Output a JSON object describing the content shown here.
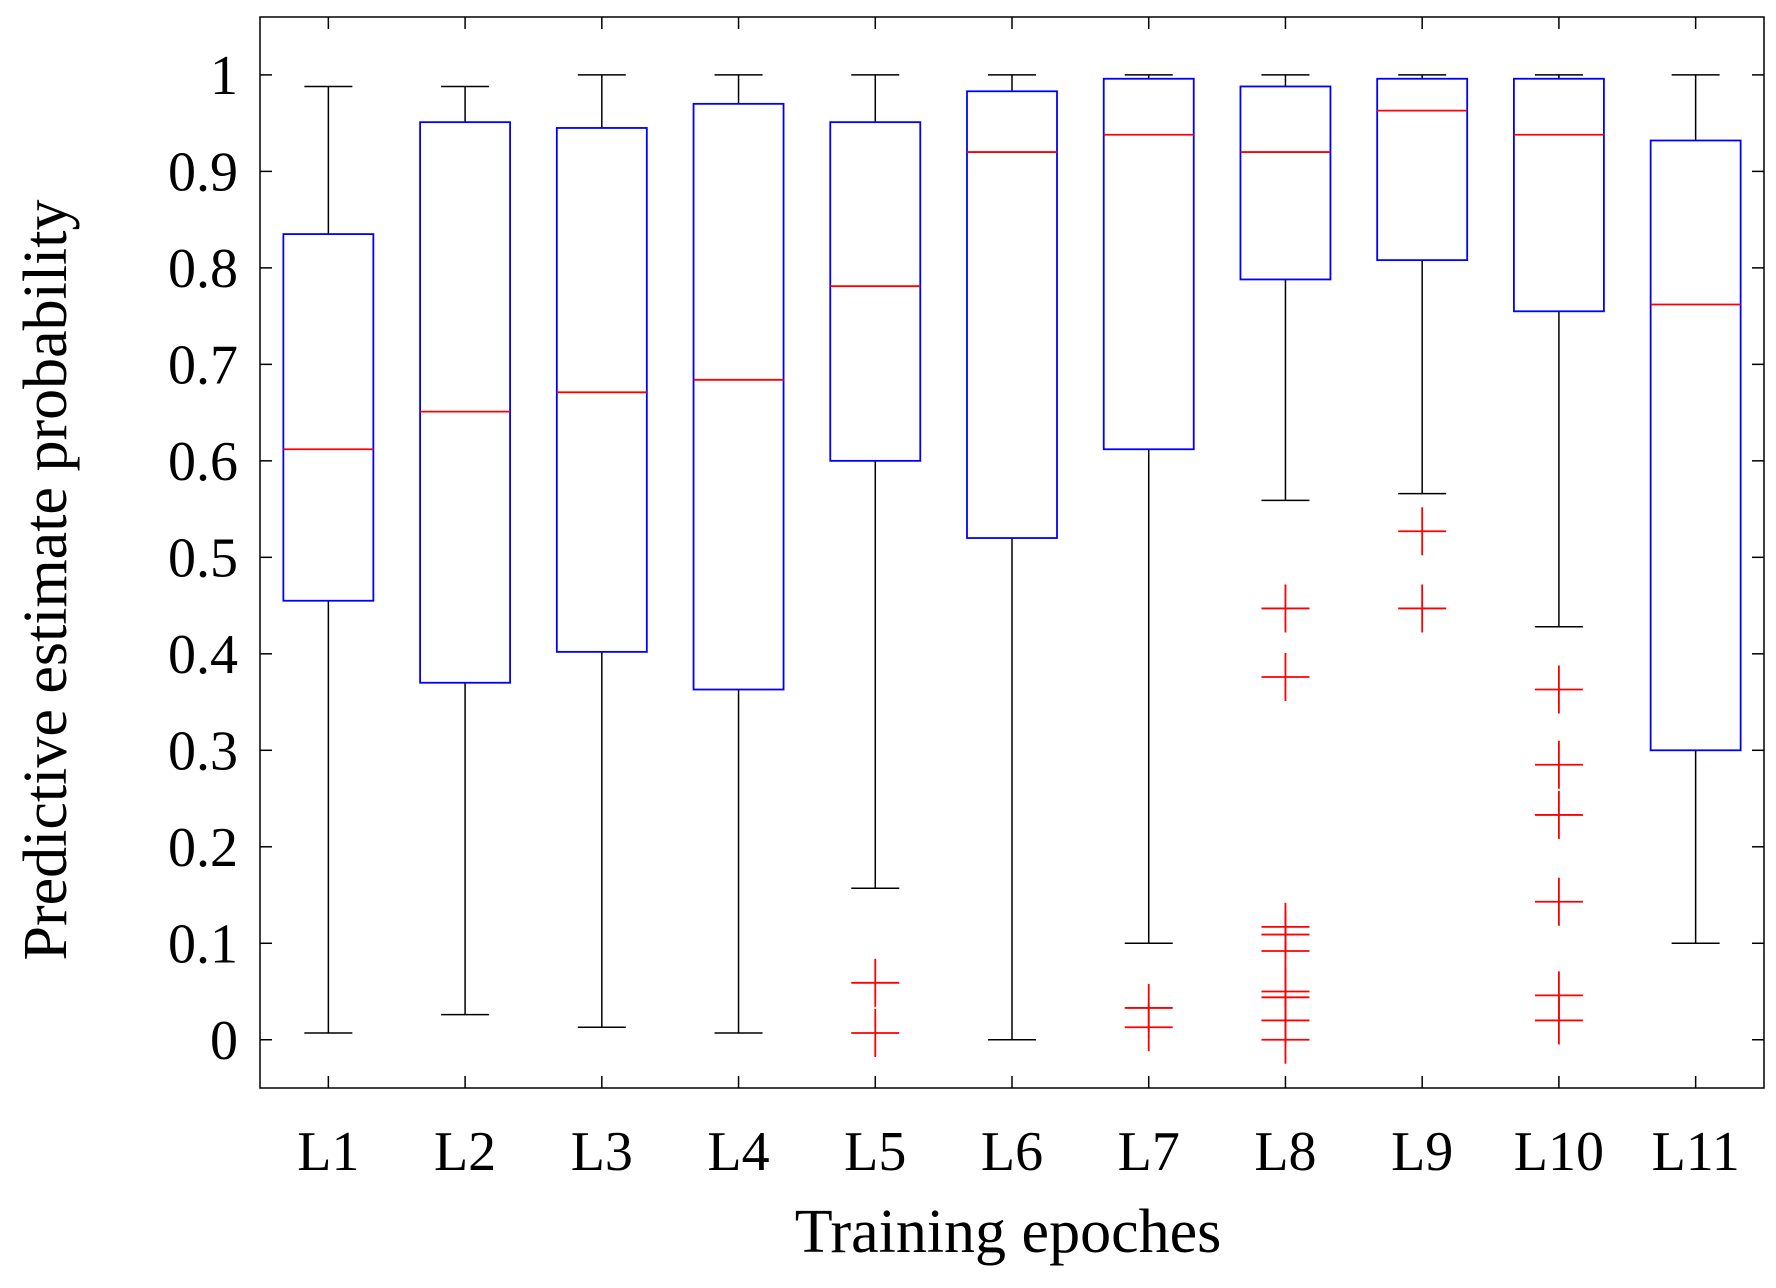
{
  "chart_data": {
    "type": "boxplot",
    "title": "",
    "xlabel": "Training epoches",
    "ylabel": "Predictive estimate probability",
    "ylim": [
      -0.05,
      1.06
    ],
    "yticks": [
      0,
      0.1,
      0.2,
      0.3,
      0.4,
      0.5,
      0.6,
      0.7,
      0.8,
      0.9,
      1
    ],
    "ytick_labels": [
      "0",
      "0.1",
      "0.2",
      "0.3",
      "0.4",
      "0.5",
      "0.6",
      "0.7",
      "0.8",
      "0.9",
      "1"
    ],
    "categories": [
      "L1",
      "L2",
      "L3",
      "L4",
      "L5",
      "L6",
      "L7",
      "L8",
      "L9",
      "L10",
      "L11"
    ],
    "colors": {
      "box": "#0000ff",
      "median": "#ff0000",
      "whisker": "#000000",
      "outlier": "#ff0000",
      "axis": "#000000"
    },
    "boxes": [
      {
        "label": "L1",
        "whislo": 0.007,
        "q1": 0.455,
        "median": 0.612,
        "q3": 0.835,
        "whishi": 0.988,
        "fliers": []
      },
      {
        "label": "L2",
        "whislo": 0.026,
        "q1": 0.37,
        "median": 0.651,
        "q3": 0.951,
        "whishi": 0.988,
        "fliers": []
      },
      {
        "label": "L3",
        "whislo": 0.013,
        "q1": 0.402,
        "median": 0.671,
        "q3": 0.945,
        "whishi": 1.0,
        "fliers": []
      },
      {
        "label": "L4",
        "whislo": 0.007,
        "q1": 0.363,
        "median": 0.684,
        "q3": 0.97,
        "whishi": 1.0,
        "fliers": []
      },
      {
        "label": "L5",
        "whislo": 0.157,
        "q1": 0.6,
        "median": 0.781,
        "q3": 0.951,
        "whishi": 1.0,
        "fliers": [
          0.059,
          0.007
        ]
      },
      {
        "label": "L6",
        "whislo": 0.0,
        "q1": 0.52,
        "median": 0.92,
        "q3": 0.983,
        "whishi": 1.0,
        "fliers": []
      },
      {
        "label": "L7",
        "whislo": 0.1,
        "q1": 0.612,
        "median": 0.938,
        "q3": 0.996,
        "whishi": 1.0,
        "fliers": [
          0.033,
          0.013
        ]
      },
      {
        "label": "L8",
        "whislo": 0.559,
        "q1": 0.788,
        "median": 0.92,
        "q3": 0.988,
        "whishi": 1.0,
        "fliers": [
          0.447,
          0.376,
          0.117,
          0.109,
          0.092,
          0.05,
          0.044,
          0.02,
          0.0
        ]
      },
      {
        "label": "L9",
        "whislo": 0.566,
        "q1": 0.808,
        "median": 0.963,
        "q3": 0.996,
        "whishi": 1.0,
        "fliers": [
          0.527,
          0.447
        ]
      },
      {
        "label": "L10",
        "whislo": 0.428,
        "q1": 0.755,
        "median": 0.938,
        "q3": 0.996,
        "whishi": 1.0,
        "fliers": [
          0.363,
          0.285,
          0.233,
          0.143,
          0.046,
          0.02
        ]
      },
      {
        "label": "L11",
        "whislo": 0.1,
        "q1": 0.3,
        "median": 0.762,
        "q3": 0.932,
        "whishi": 1.0,
        "fliers": []
      }
    ]
  }
}
